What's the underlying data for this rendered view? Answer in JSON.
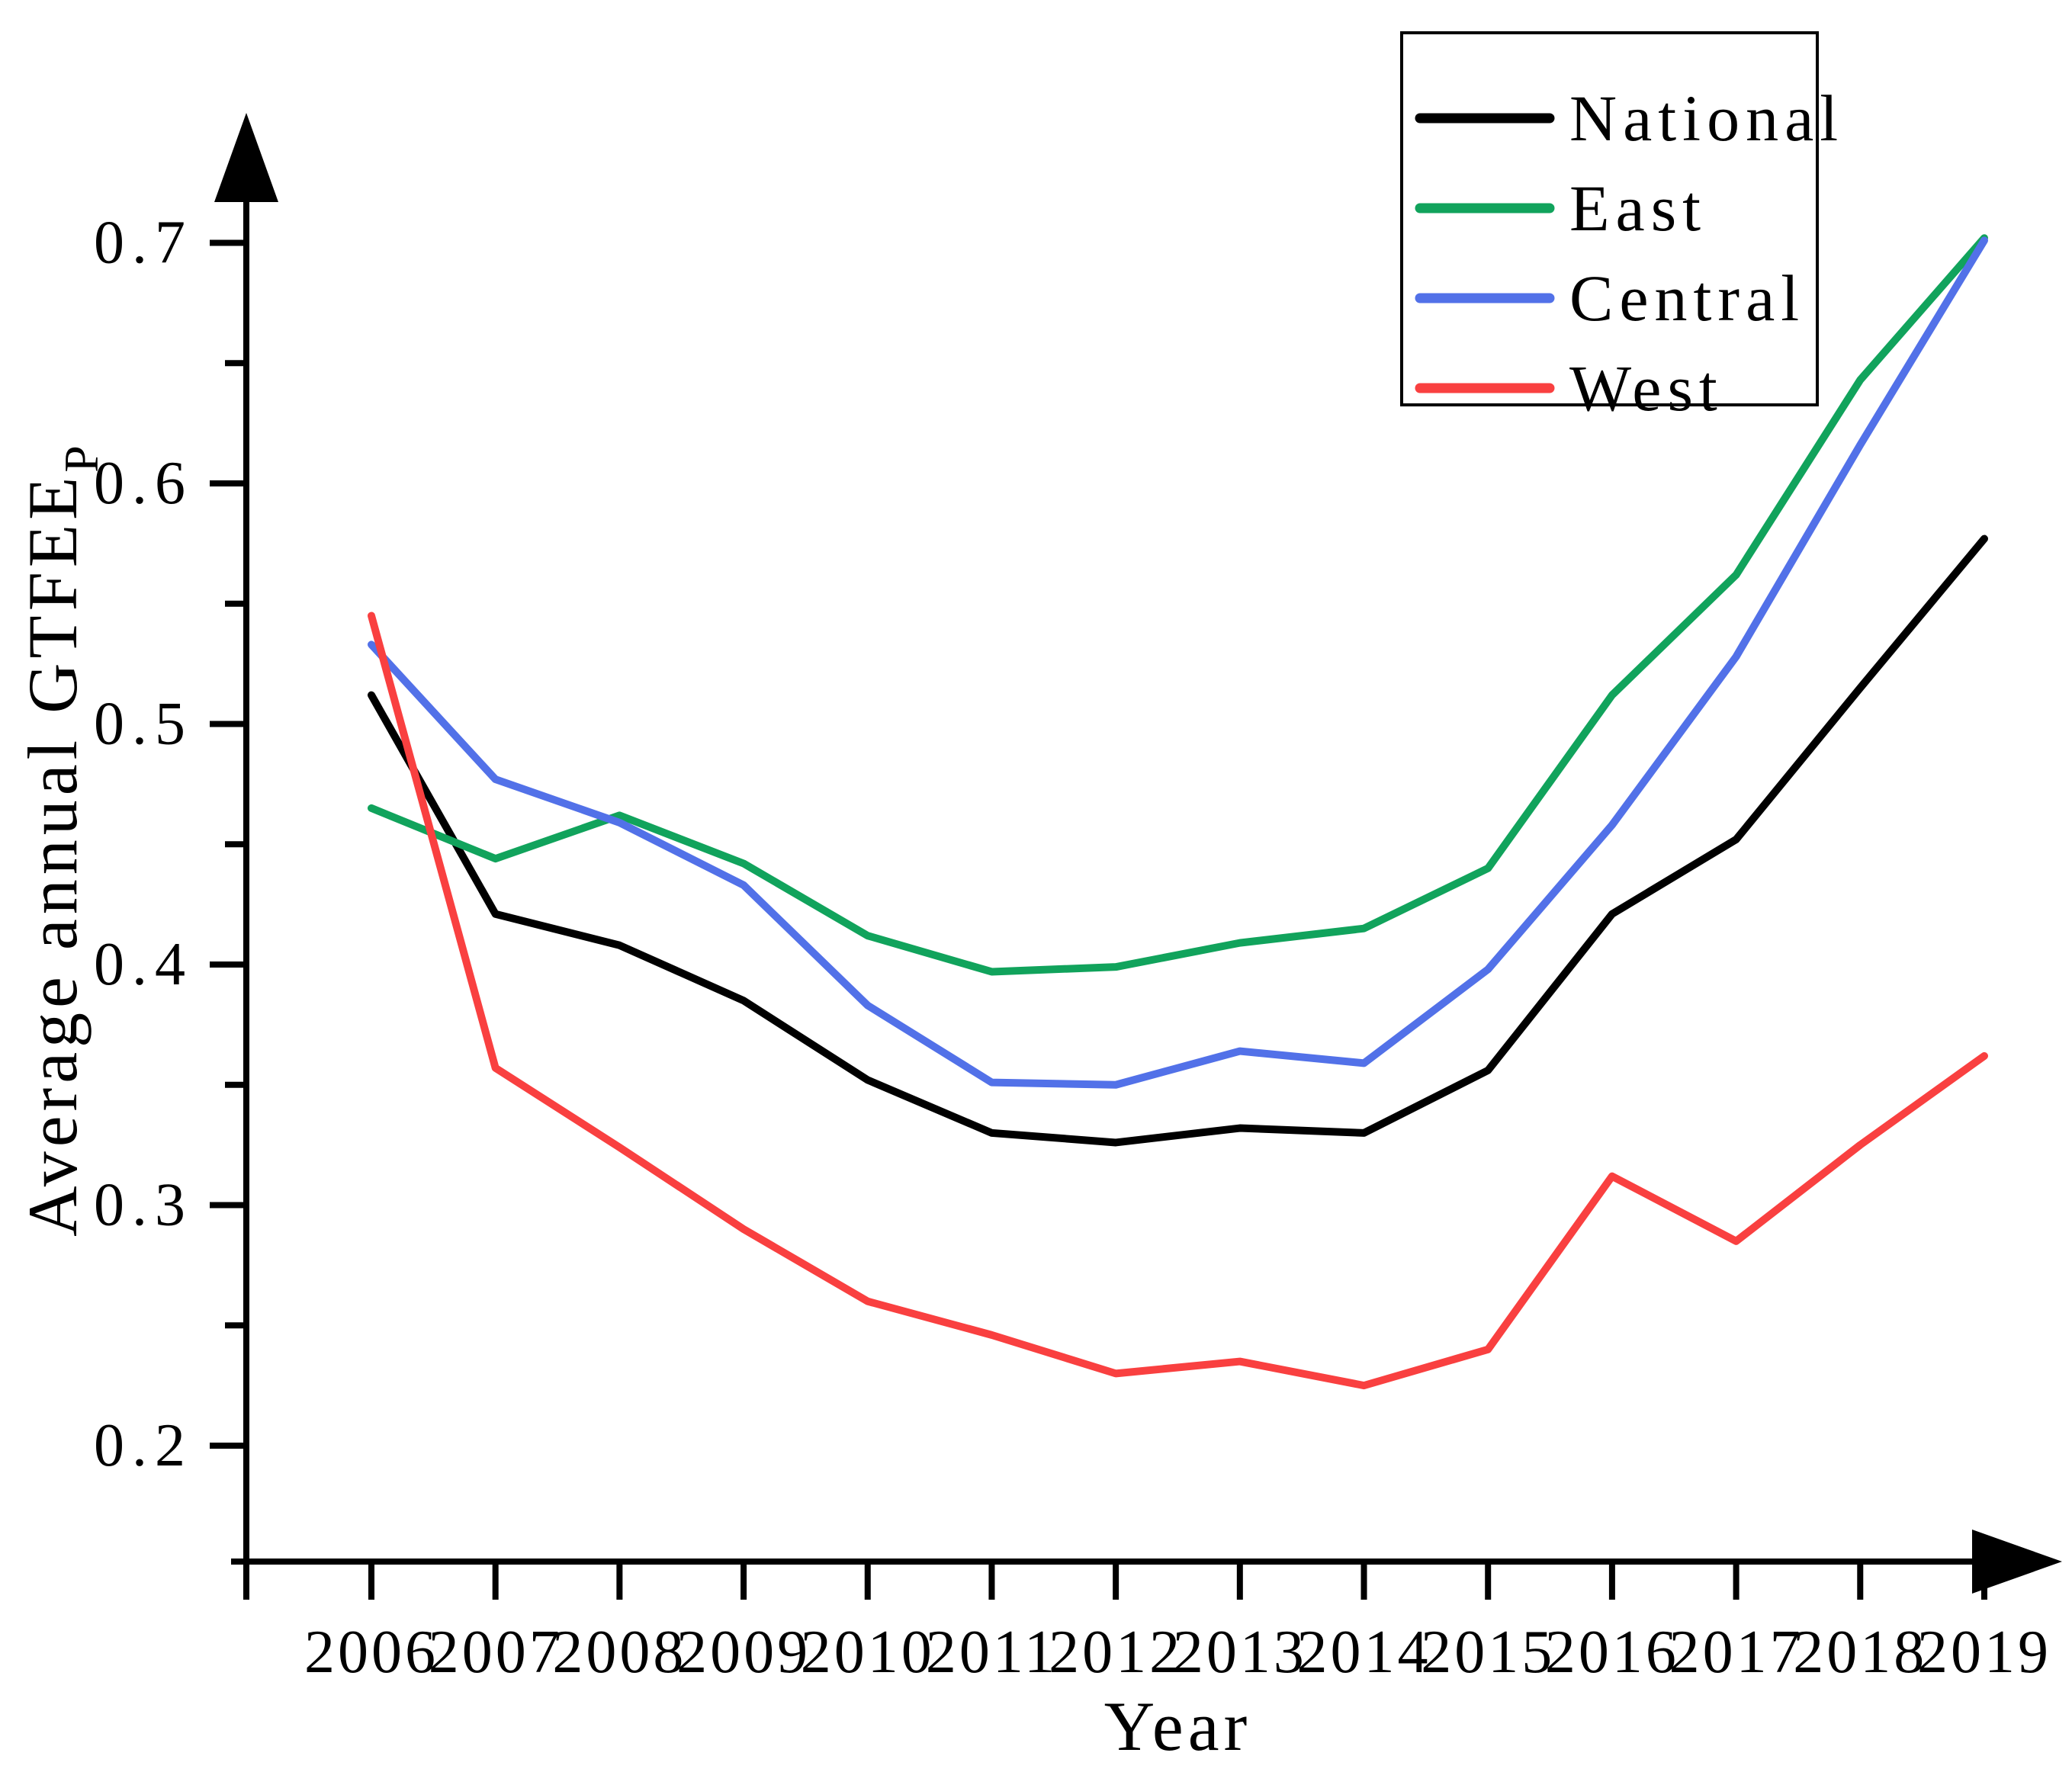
{
  "chart_data": {
    "type": "line",
    "title": "",
    "xlabel": "Year",
    "ylabel": "Average annual GTFEE",
    "ylabel_subscript": "P",
    "x": [
      2006,
      2007,
      2008,
      2009,
      2010,
      2011,
      2012,
      2013,
      2014,
      2015,
      2016,
      2017,
      2018,
      2019
    ],
    "x_tick_labels": [
      "2006",
      "2007",
      "2008",
      "2009",
      "2010",
      "2011",
      "2012",
      "2013",
      "2014",
      "2015",
      "2016",
      "2017",
      "2018",
      "2019"
    ],
    "y_ticks": [
      0.2,
      0.3,
      0.4,
      0.5,
      0.6,
      0.7
    ],
    "y_tick_labels": [
      "0.2",
      "0.3",
      "0.4",
      "0.5",
      "0.6",
      "0.7"
    ],
    "y_minor_ticks": [
      0.25,
      0.35,
      0.45,
      0.55,
      0.65
    ],
    "ylim": [
      0.14,
      0.76
    ],
    "grid": false,
    "legend_position": "top-right",
    "series": [
      {
        "name": "National",
        "color": "#000000",
        "values": [
          0.512,
          0.421,
          0.408,
          0.385,
          0.352,
          0.33,
          0.326,
          0.332,
          0.33,
          0.356,
          0.421,
          0.452,
          0.515,
          0.577
        ]
      },
      {
        "name": "East",
        "color": "#11A35C",
        "values": [
          0.465,
          0.444,
          0.462,
          0.442,
          0.412,
          0.397,
          0.399,
          0.409,
          0.415,
          0.44,
          0.512,
          0.562,
          0.643,
          0.702
        ]
      },
      {
        "name": "Central",
        "color": "#5271E8",
        "values": [
          0.533,
          0.477,
          0.459,
          0.433,
          0.383,
          0.351,
          0.35,
          0.364,
          0.359,
          0.398,
          0.458,
          0.528,
          0.616,
          0.701
        ]
      },
      {
        "name": "West",
        "color": "#F94040",
        "values": [
          0.545,
          0.357,
          0.324,
          0.29,
          0.26,
          0.246,
          0.23,
          0.235,
          0.225,
          0.24,
          0.312,
          0.285,
          0.325,
          0.362
        ]
      }
    ],
    "axis_color": "#000000"
  }
}
